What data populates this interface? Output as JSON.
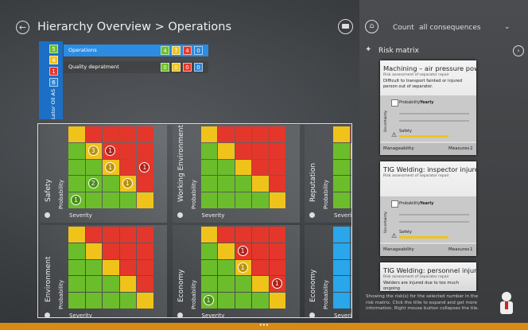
{
  "header": {
    "title": "Hierarchy Overview > Operations",
    "count_label": "Count",
    "count_filter": "all consequences"
  },
  "hierarchy": {
    "root": "Lotor Oil AS",
    "root_counts": [
      5,
      4,
      1,
      6
    ],
    "units": [
      {
        "name": "Operations",
        "counts": [
          4,
          7,
          4,
          0
        ]
      },
      {
        "name": "Quality depratment",
        "counts": [
          0,
          0,
          0,
          0
        ]
      }
    ]
  },
  "axis": {
    "x": "Severity",
    "y": "Probability"
  },
  "matrices": [
    {
      "name": "Safety",
      "markers": [
        3,
        1,
        1,
        1,
        2,
        1,
        1
      ]
    },
    {
      "name": "Working Environment",
      "markers": []
    },
    {
      "name": "Reputation",
      "markers": []
    },
    {
      "name": "Environment",
      "markers": []
    },
    {
      "name": "Economy",
      "markers": [
        1,
        1,
        1,
        1
      ]
    },
    {
      "name": "Economy",
      "markers": [],
      "color": "#2aa6ea"
    }
  ],
  "panel": {
    "title": "Risk matrix",
    "cards": [
      {
        "title": "Machining – air pressure powe...",
        "subtitle": "Risk assessment of separator repair",
        "description": "Difficult to transport fainted or injured person out of separator.",
        "probability_label": "Probability",
        "probability": "Yearly",
        "uncertainty": "Uncertainty",
        "consequence": "Safety",
        "manageability": "Manageability",
        "measures_label": "Measures",
        "measures": 2
      },
      {
        "title": "TIG Welding: inspector injured",
        "subtitle": "Risk assessment of separator repair",
        "probability_label": "Probability",
        "probability": "Yearly",
        "uncertainty": "Uncertainty",
        "consequence": "Safety",
        "manageability": "Manageability",
        "measures_label": "Measures",
        "measures": 1
      },
      {
        "title": "TIG Welding: personnel injury",
        "subtitle": "Risk assessment of separator repair",
        "description": "Welders are injured due to too much ongoing"
      }
    ],
    "help": "Showing the risk(s) for the selected number in the risk matrix. Click the title to expand and get more information. Right mouse button collapses the tile."
  }
}
